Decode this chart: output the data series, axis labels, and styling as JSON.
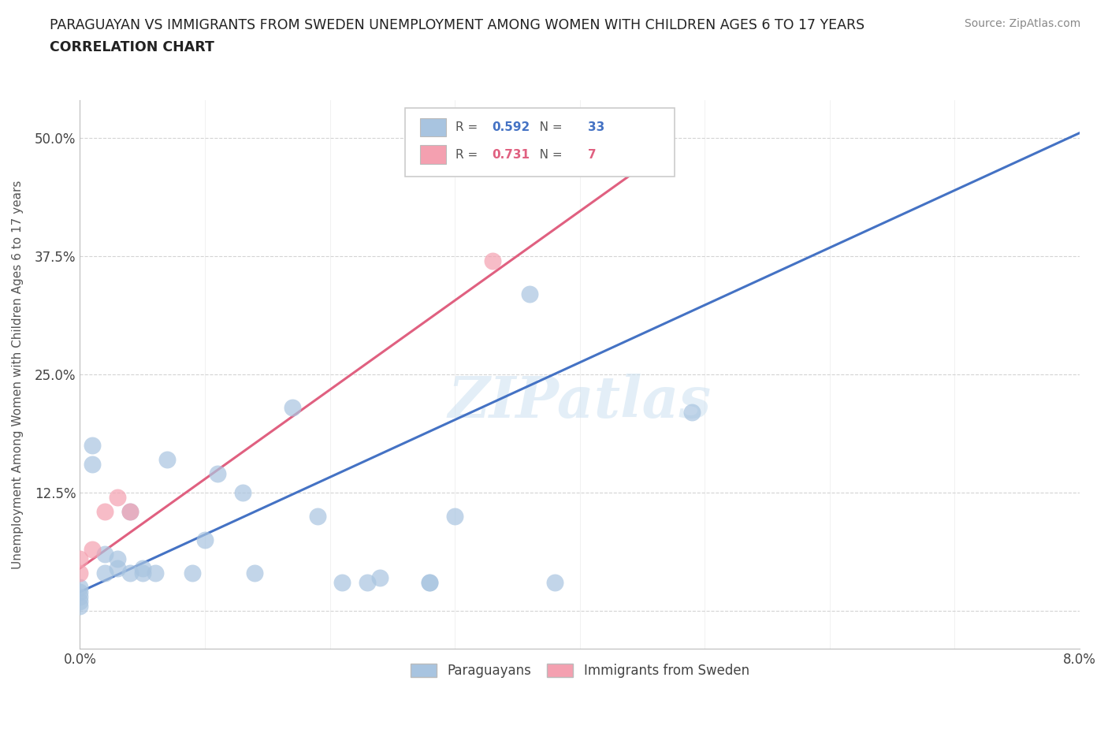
{
  "title_line1": "PARAGUAYAN VS IMMIGRANTS FROM SWEDEN UNEMPLOYMENT AMONG WOMEN WITH CHILDREN AGES 6 TO 17 YEARS",
  "title_line2": "CORRELATION CHART",
  "source_text": "Source: ZipAtlas.com",
  "ylabel": "Unemployment Among Women with Children Ages 6 to 17 years",
  "xlim": [
    0.0,
    0.08
  ],
  "ylim": [
    -0.04,
    0.54
  ],
  "x_ticks": [
    0.0,
    0.01,
    0.02,
    0.03,
    0.04,
    0.05,
    0.06,
    0.07,
    0.08
  ],
  "x_tick_labels": [
    "0.0%",
    "",
    "",
    "",
    "",
    "",
    "",
    "",
    "8.0%"
  ],
  "y_ticks": [
    0.0,
    0.125,
    0.25,
    0.375,
    0.5
  ],
  "y_tick_labels": [
    "",
    "12.5%",
    "25.0%",
    "37.5%",
    "50.0%"
  ],
  "paraguayan_R": 0.592,
  "paraguayan_N": 33,
  "sweden_R": 0.731,
  "sweden_N": 7,
  "paraguayan_color": "#a8c4e0",
  "sweden_color": "#f4a0b0",
  "paraguayan_line_color": "#4472c4",
  "sweden_line_color": "#e06080",
  "paraguayan_scatter_x": [
    0.0,
    0.0,
    0.0,
    0.0,
    0.0,
    0.001,
    0.001,
    0.002,
    0.002,
    0.003,
    0.003,
    0.004,
    0.004,
    0.005,
    0.005,
    0.006,
    0.007,
    0.009,
    0.01,
    0.011,
    0.013,
    0.014,
    0.017,
    0.019,
    0.021,
    0.023,
    0.024,
    0.028,
    0.028,
    0.03,
    0.036,
    0.038,
    0.049
  ],
  "paraguayan_scatter_y": [
    0.005,
    0.01,
    0.015,
    0.02,
    0.025,
    0.155,
    0.175,
    0.04,
    0.06,
    0.045,
    0.055,
    0.04,
    0.105,
    0.04,
    0.045,
    0.04,
    0.16,
    0.04,
    0.075,
    0.145,
    0.125,
    0.04,
    0.215,
    0.1,
    0.03,
    0.03,
    0.035,
    0.03,
    0.03,
    0.1,
    0.335,
    0.03,
    0.21
  ],
  "sweden_scatter_x": [
    0.0,
    0.0,
    0.001,
    0.002,
    0.003,
    0.004,
    0.033
  ],
  "sweden_scatter_y": [
    0.04,
    0.055,
    0.065,
    0.105,
    0.12,
    0.105,
    0.37
  ],
  "blue_line_x": [
    0.0,
    0.08
  ],
  "blue_line_y": [
    0.02,
    0.505
  ],
  "pink_line_x": [
    0.0,
    0.044
  ],
  "pink_line_y": [
    0.045,
    0.46
  ],
  "watermark_text": "ZIPatlas",
  "background_color": "#ffffff",
  "grid_color": "#d0d0d0"
}
